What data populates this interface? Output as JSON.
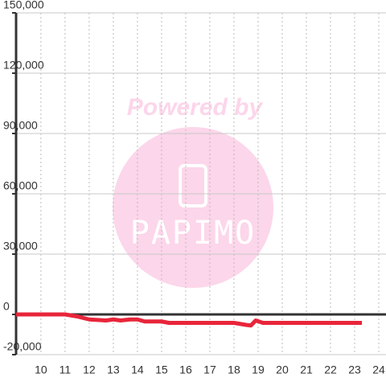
{
  "chart_data": {
    "type": "line",
    "x": [
      8.97,
      10,
      11,
      11.5,
      12,
      12.7,
      13,
      13.3,
      13.7,
      14,
      14.3,
      15,
      15.3,
      16,
      17,
      18,
      18.5,
      18.7,
      18.9,
      19.2,
      20,
      21,
      22,
      23.3
    ],
    "series": [
      {
        "color": "#e8253a",
        "values": [
          0,
          0,
          0,
          -1000,
          -2500,
          -3000,
          -2500,
          -3000,
          -2500,
          -2500,
          -3500,
          -3500,
          -4200,
          -4200,
          -4200,
          -4200,
          -5200,
          -5500,
          -3000,
          -4200,
          -4200,
          -4200,
          -4200,
          -4200
        ]
      }
    ],
    "xlim": [
      8.97,
      24.3
    ],
    "xticks": [
      10,
      11,
      12,
      13,
      14,
      15,
      16,
      17,
      18,
      19,
      20,
      21,
      22,
      23,
      24
    ],
    "ylim": [
      -20000,
      150000
    ],
    "yticks": [
      {
        "value": -20000,
        "label": "-20,000"
      },
      0,
      {
        "value": 30000,
        "label": "30,000"
      },
      {
        "value": 60000,
        "label": "60,000"
      },
      {
        "value": 90000,
        "label": "90,000"
      },
      {
        "value": 120000,
        "label": "120,000"
      },
      {
        "value": 150000,
        "label": "150,000"
      }
    ],
    "grid": true,
    "watermark": [
      "Powered by",
      "PAPIMO"
    ]
  }
}
